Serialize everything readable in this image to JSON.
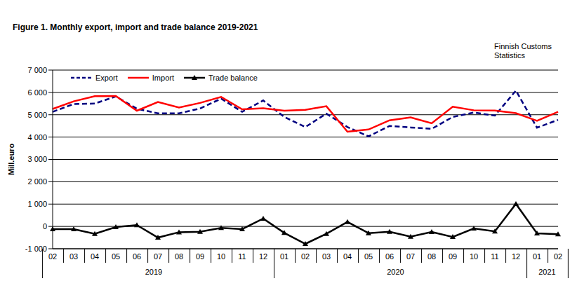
{
  "chart_data": {
    "type": "line",
    "title": "Figure 1. Monthly export, import and trade balance 2019-2021",
    "source": "Finnish Customs Statistics",
    "y_label": "Mill.euro",
    "categories": [
      "02",
      "03",
      "04",
      "05",
      "06",
      "07",
      "08",
      "09",
      "10",
      "11",
      "12",
      "01",
      "02",
      "03",
      "04",
      "05",
      "06",
      "07",
      "08",
      "09",
      "10",
      "11",
      "12",
      "01",
      "02"
    ],
    "category_groups": [
      {
        "label": "2019",
        "count": 11
      },
      {
        "label": "2020",
        "count": 12
      },
      {
        "label": "2021",
        "count": 2
      }
    ],
    "series": [
      {
        "name": "Export",
        "color": "#000080",
        "line_style": "dashed",
        "values": [
          5130,
          5480,
          5500,
          5820,
          5270,
          5060,
          5060,
          5280,
          5720,
          5130,
          5640,
          4900,
          4450,
          5050,
          4450,
          4030,
          4500,
          4430,
          4370,
          4900,
          5100,
          4960,
          6080,
          4420,
          4770
        ]
      },
      {
        "name": "Import",
        "color": "#ff0000",
        "line_style": "solid",
        "values": [
          5260,
          5600,
          5830,
          5840,
          5180,
          5570,
          5320,
          5530,
          5800,
          5240,
          5290,
          5180,
          5220,
          5380,
          4240,
          4340,
          4750,
          4880,
          4620,
          5360,
          5200,
          5190,
          5070,
          4730,
          5130
        ]
      },
      {
        "name": "Trade balance",
        "color": "#000000",
        "line_style": "solid",
        "marker": "triangle",
        "values": [
          -120,
          -120,
          -330,
          -30,
          60,
          -500,
          -260,
          -240,
          -70,
          -120,
          350,
          -290,
          -780,
          -330,
          200,
          -300,
          -240,
          -460,
          -250,
          -470,
          -90,
          -220,
          1010,
          -310,
          -350
        ]
      }
    ],
    "ylim": [
      -1000,
      7000
    ],
    "yticks": [
      {
        "value": -1000,
        "label": "-1 000"
      },
      0,
      {
        "value": 1000,
        "label": "1 000"
      },
      {
        "value": 2000,
        "label": "2 000"
      },
      {
        "value": 3000,
        "label": "3 000"
      },
      {
        "value": 4000,
        "label": "4 000"
      },
      {
        "value": 5000,
        "label": "5 000"
      },
      {
        "value": 6000,
        "label": "6 000"
      },
      {
        "value": 7000,
        "label": "7 000"
      }
    ],
    "grid": true,
    "legend": "top-left"
  }
}
